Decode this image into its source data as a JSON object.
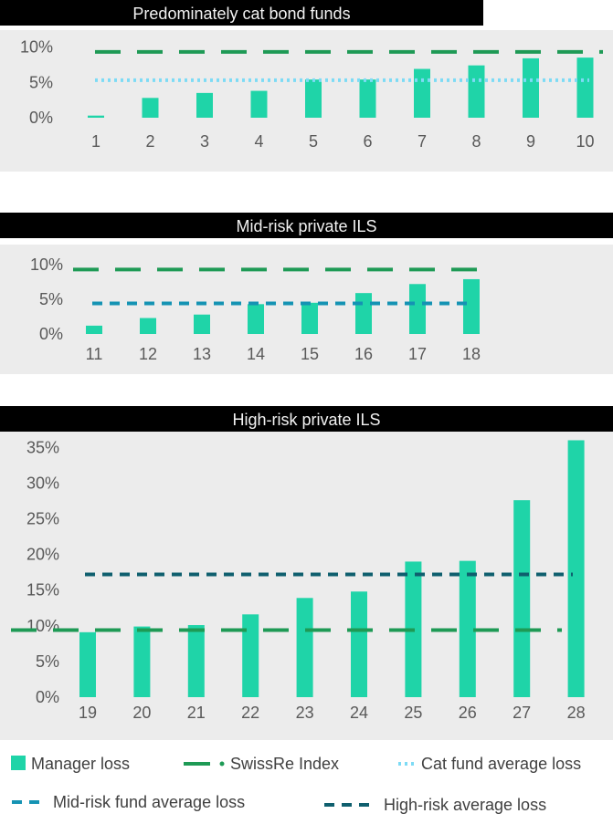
{
  "colors": {
    "manager_loss": "#1fd4a8",
    "swissre_index": "#1e9a55",
    "cat_fund_average": "#7ddbf5",
    "mid_risk_average": "#1593b3",
    "high_risk_average": "#0f5f6e",
    "panel_bg": "#ececec",
    "title_bg": "#000000",
    "tick_text": "#595959"
  },
  "chart_data": [
    {
      "type": "bar",
      "title": "Predominately cat bond funds",
      "categories": [
        "1",
        "2",
        "3",
        "4",
        "5",
        "6",
        "7",
        "8",
        "9",
        "10"
      ],
      "series": [
        {
          "name": "Manager loss",
          "values": [
            0.3,
            2.8,
            3.5,
            3.8,
            5.4,
            5.4,
            6.9,
            7.4,
            8.4,
            8.5
          ]
        }
      ],
      "reference_lines": [
        {
          "name": "SwissRe Index",
          "value": 9.3,
          "style": "long-dash"
        },
        {
          "name": "Cat fund average loss",
          "value": 5.3,
          "style": "dotted"
        }
      ],
      "yticks": [
        "0%",
        "5%",
        "10%"
      ],
      "ylim": [
        0,
        10
      ]
    },
    {
      "type": "bar",
      "title": "Mid-risk private ILS",
      "categories": [
        "11",
        "12",
        "13",
        "14",
        "15",
        "16",
        "17",
        "18"
      ],
      "series": [
        {
          "name": "Manager loss",
          "values": [
            1.2,
            2.3,
            2.8,
            4.3,
            4.5,
            5.9,
            7.2,
            7.9
          ]
        }
      ],
      "reference_lines": [
        {
          "name": "SwissRe Index",
          "value": 9.3,
          "style": "long-dash"
        },
        {
          "name": "Mid-risk fund average loss",
          "value": 4.4,
          "style": "dashed"
        }
      ],
      "yticks": [
        "0%",
        "5%",
        "10%"
      ],
      "ylim": [
        0,
        10
      ]
    },
    {
      "type": "bar",
      "title": "High-risk private ILS",
      "categories": [
        "19",
        "20",
        "21",
        "22",
        "23",
        "24",
        "25",
        "26",
        "27",
        "28"
      ],
      "series": [
        {
          "name": "Manager loss",
          "values": [
            9.1,
            9.9,
            10.1,
            11.6,
            13.9,
            14.8,
            19.0,
            19.1,
            27.6,
            36.0
          ]
        }
      ],
      "reference_lines": [
        {
          "name": "SwissRe Index",
          "value": 9.4,
          "style": "long-dash"
        },
        {
          "name": "High-risk average loss",
          "value": 17.2,
          "style": "dashed"
        }
      ],
      "yticks": [
        "0%",
        "5%",
        "10%",
        "15%",
        "20%",
        "25%",
        "30%",
        "35%"
      ],
      "ylim": [
        0,
        36
      ]
    }
  ],
  "legend": {
    "manager_loss": "Manager loss",
    "swissre_index": "SwissRe Index",
    "cat_fund_average": "Cat fund average loss",
    "mid_risk_average": "Mid-risk fund average loss",
    "high_risk_average": "High-risk average loss"
  }
}
